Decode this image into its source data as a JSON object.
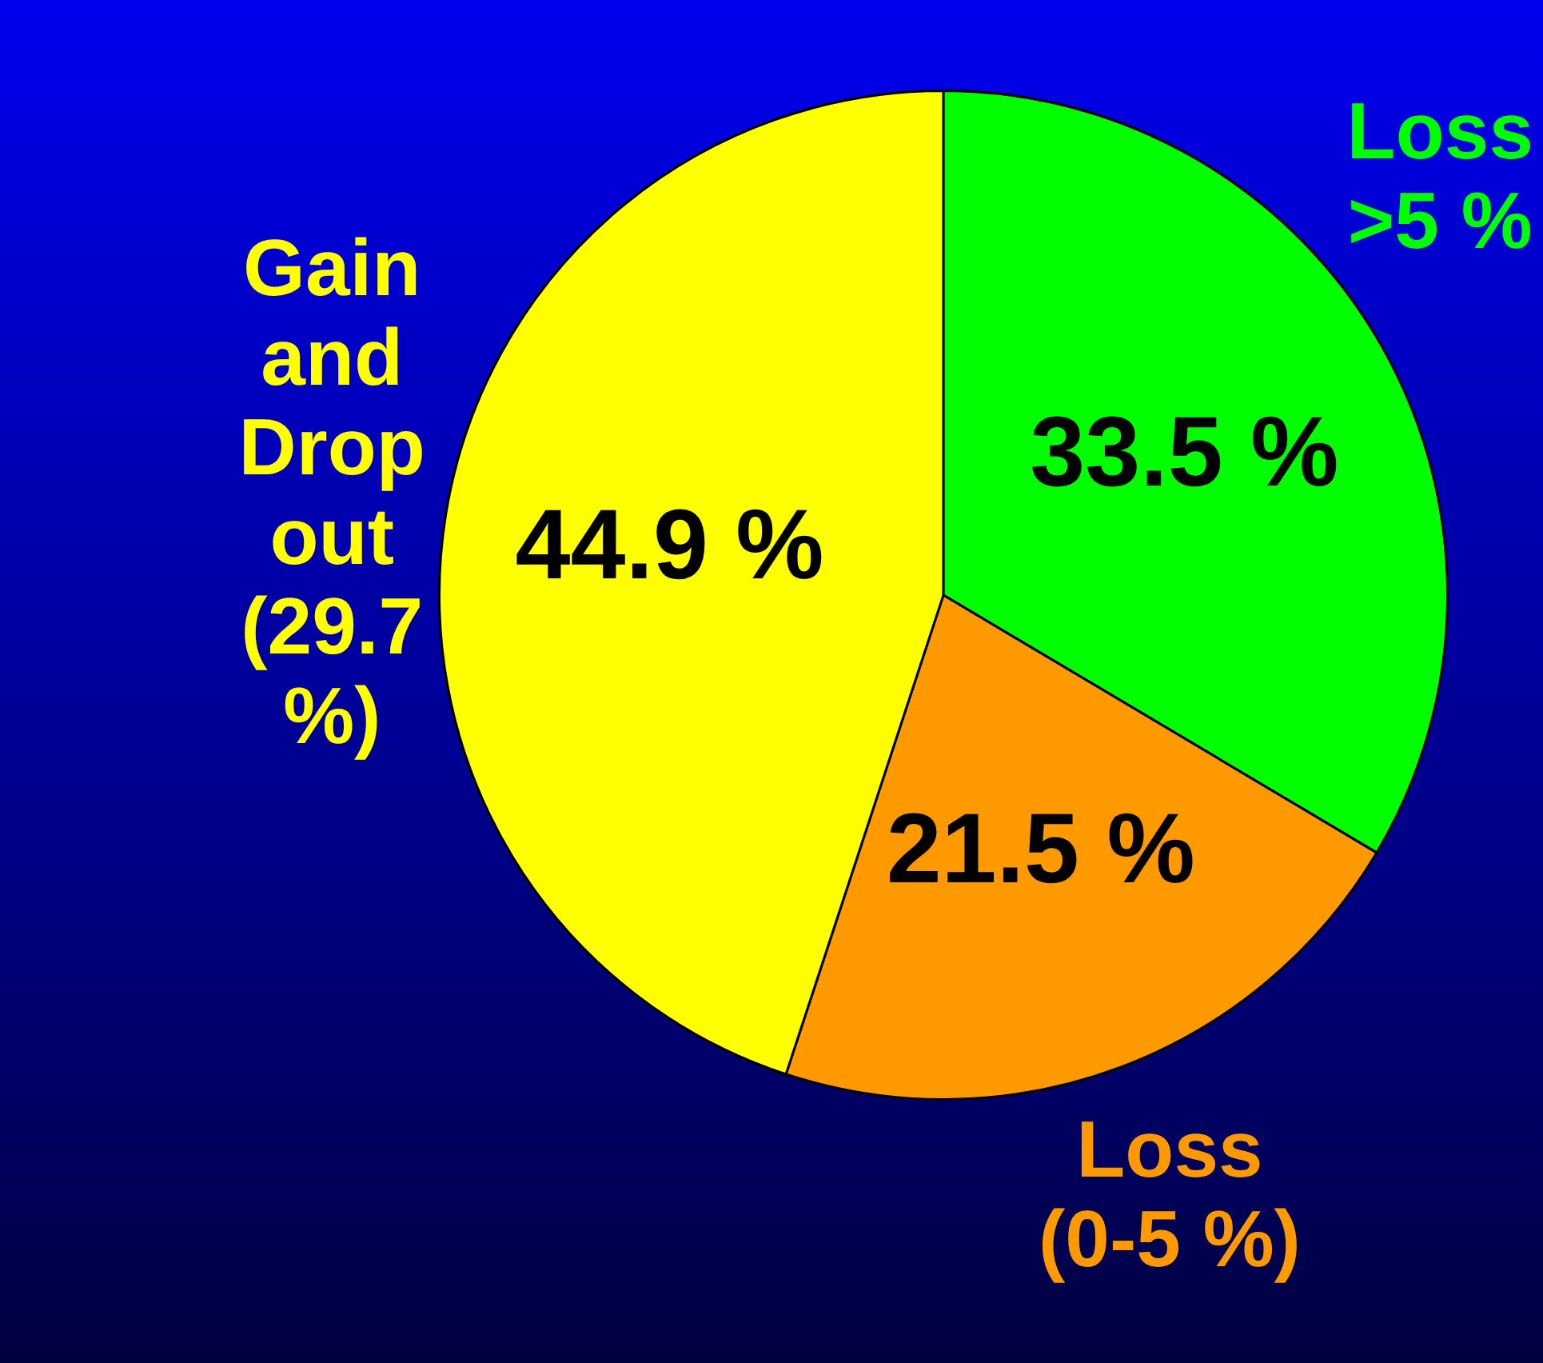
{
  "chart_data": {
    "type": "pie",
    "categories": [
      "Loss >5 %",
      "Loss (0-5 %)",
      "Gain and Drop out (29.7 %)"
    ],
    "values": [
      33.5,
      21.5,
      44.9
    ],
    "colors": [
      "#00ff00",
      "#ff9900",
      "#ffff00"
    ],
    "value_labels": [
      "33.5 %",
      "21.5 %",
      "44.9 %"
    ],
    "legend": false
  }
}
